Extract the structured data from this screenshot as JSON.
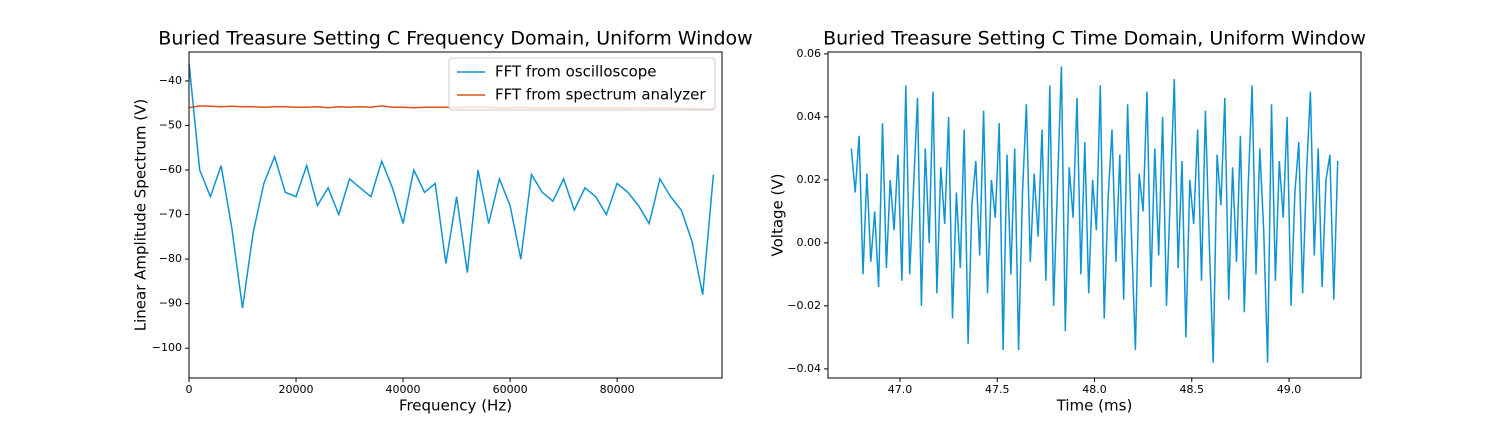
{
  "chart_data": [
    {
      "type": "line",
      "title": "Buried Treasure Setting C Frequency Domain, Uniform Window",
      "xlabel": "Frequency (Hz)",
      "ylabel": "Linear Amplitude Spectrum (V)",
      "x": [
        0,
        2000,
        4000,
        6000,
        8000,
        10000,
        12000,
        14000,
        16000,
        18000,
        20000,
        22000,
        24000,
        26000,
        28000,
        30000,
        32000,
        34000,
        36000,
        38000,
        40000,
        42000,
        44000,
        46000,
        48000,
        50000,
        52000,
        54000,
        56000,
        58000,
        60000,
        62000,
        64000,
        66000,
        68000,
        70000,
        72000,
        74000,
        76000,
        78000,
        80000,
        82000,
        84000,
        86000,
        88000,
        90000,
        92000,
        94000,
        96000,
        98000
      ],
      "series": [
        {
          "name": "FFT from oscilloscope",
          "color": "#0f94d2",
          "values": [
            -36,
            -60,
            -66,
            -59,
            -73,
            -91,
            -74,
            -63,
            -57,
            -65,
            -66,
            -59,
            -68,
            -64,
            -70,
            -62,
            -64,
            -66,
            -58,
            -64,
            -72,
            -60,
            -65,
            -63,
            -81,
            -66,
            -83,
            -60,
            -72,
            -62,
            -68,
            -80,
            -61,
            -65,
            -67,
            -62,
            -69,
            -64,
            -66,
            -70,
            -63,
            -65,
            -68,
            -72,
            -62,
            -66,
            -69,
            -76,
            -88,
            -61
          ]
        },
        {
          "name": "FFT from spectrum analyzer",
          "color": "#d95319",
          "values": [
            -46,
            -45.6,
            -45.7,
            -45.8,
            -45.7,
            -45.8,
            -45.8,
            -45.9,
            -45.8,
            -45.8,
            -45.9,
            -45.9,
            -45.8,
            -46,
            -45.8,
            -45.9,
            -45.8,
            -45.9,
            -45.6,
            -45.9,
            -45.9,
            -46,
            -45.9,
            -45.9,
            -45.9,
            -46,
            -45.9,
            -45.9,
            -45.9,
            -46,
            -46,
            -45.9,
            -46,
            -46,
            -46,
            -46,
            -46,
            -46.1,
            -46,
            -46,
            -46,
            -46.1,
            -46,
            -46.1,
            -46.1,
            -46.1,
            -46.2,
            -46.2,
            -46.3,
            -46.2
          ]
        }
      ],
      "xlim": [
        0,
        99600
      ],
      "ylim": [
        -106.7,
        -33.5
      ],
      "xticks": [
        0,
        20000,
        40000,
        60000,
        80000
      ],
      "yticks": [
        {
          "value": -100,
          "label": "−100"
        },
        {
          "value": -90,
          "label": "−90"
        },
        {
          "value": -80,
          "label": "−80"
        },
        {
          "value": -70,
          "label": "−70"
        },
        {
          "value": -60,
          "label": "−60"
        },
        {
          "value": -50,
          "label": "−50"
        },
        {
          "value": -40,
          "label": "−40"
        }
      ],
      "legend": "upper right",
      "grid": false
    },
    {
      "type": "line",
      "title": "Buried Treasure Setting C Time Domain, Uniform Window",
      "xlabel": "Time (ms)",
      "ylabel": "Voltage (V)",
      "x": [
        46.75,
        46.77,
        46.79,
        46.81,
        46.83,
        46.85,
        46.87,
        46.89,
        46.91,
        46.93,
        46.95,
        46.97,
        46.99,
        47.01,
        47.03,
        47.05,
        47.07,
        47.09,
        47.11,
        47.13,
        47.15,
        47.17,
        47.19,
        47.21,
        47.23,
        47.25,
        47.27,
        47.29,
        47.31,
        47.33,
        47.35,
        47.37,
        47.39,
        47.41,
        47.43,
        47.45,
        47.47,
        47.49,
        47.51,
        47.53,
        47.55,
        47.57,
        47.59,
        47.61,
        47.63,
        47.65,
        47.67,
        47.69,
        47.71,
        47.73,
        47.75,
        47.77,
        47.79,
        47.81,
        47.83,
        47.85,
        47.87,
        47.89,
        47.91,
        47.93,
        47.95,
        47.97,
        47.99,
        48.01,
        48.03,
        48.05,
        48.07,
        48.09,
        48.11,
        48.13,
        48.15,
        48.17,
        48.19,
        48.21,
        48.23,
        48.25,
        48.27,
        48.29,
        48.31,
        48.33,
        48.35,
        48.37,
        48.39,
        48.41,
        48.43,
        48.45,
        48.47,
        48.49,
        48.51,
        48.53,
        48.55,
        48.57,
        48.59,
        48.61,
        48.63,
        48.65,
        48.67,
        48.69,
        48.71,
        48.73,
        48.75,
        48.77,
        48.79,
        48.81,
        48.83,
        48.85,
        48.87,
        48.89,
        48.91,
        48.93,
        48.95,
        48.97,
        48.99,
        49.01,
        49.03,
        49.05,
        49.07,
        49.09,
        49.11,
        49.13,
        49.15,
        49.17,
        49.19,
        49.21,
        49.23,
        49.25
      ],
      "values": [
        0.03,
        0.016,
        0.034,
        -0.01,
        0.022,
        -0.006,
        0.01,
        -0.014,
        0.038,
        -0.008,
        0.02,
        0.004,
        0.028,
        -0.012,
        0.05,
        -0.01,
        0.018,
        0.046,
        -0.02,
        0.03,
        0.0,
        0.048,
        -0.016,
        0.024,
        0.006,
        0.04,
        -0.024,
        0.016,
        -0.008,
        0.036,
        -0.032,
        0.012,
        0.026,
        -0.004,
        0.042,
        -0.016,
        0.02,
        0.008,
        0.038,
        -0.034,
        0.028,
        -0.01,
        0.03,
        -0.034,
        0.016,
        0.044,
        -0.006,
        0.022,
        0.002,
        0.036,
        -0.012,
        0.05,
        -0.02,
        0.018,
        0.056,
        -0.028,
        0.024,
        0.008,
        0.046,
        -0.01,
        0.032,
        -0.016,
        0.02,
        0.004,
        0.05,
        -0.024,
        0.014,
        0.036,
        -0.006,
        0.028,
        -0.018,
        0.044,
        0.002,
        -0.034,
        0.022,
        0.01,
        0.048,
        -0.014,
        0.03,
        -0.004,
        0.04,
        -0.02,
        0.016,
        0.052,
        -0.008,
        0.026,
        -0.03,
        0.02,
        0.006,
        0.036,
        -0.012,
        0.042,
        0.0,
        -0.038,
        0.028,
        0.012,
        0.046,
        -0.018,
        0.024,
        -0.006,
        0.034,
        -0.022,
        0.018,
        0.05,
        -0.01,
        0.03,
        0.004,
        -0.038,
        0.044,
        -0.012,
        0.026,
        0.008,
        0.04,
        -0.02,
        0.016,
        0.032,
        -0.016,
        0.022,
        0.048,
        -0.004,
        0.03,
        -0.014,
        0.02,
        0.028,
        -0.018,
        0.026
      ],
      "color": "#0f94d2",
      "xlim": [
        46.63,
        49.37
      ],
      "ylim": [
        -0.0429,
        0.0606
      ],
      "xticks": [
        {
          "value": 47,
          "label": "47.0"
        },
        {
          "value": 47.5,
          "label": "47.5"
        },
        {
          "value": 48,
          "label": "48.0"
        },
        {
          "value": 48.5,
          "label": "48.5"
        },
        {
          "value": 49,
          "label": "49.0"
        }
      ],
      "yticks": [
        {
          "value": -0.04,
          "label": "−0.04"
        },
        {
          "value": -0.02,
          "label": "−0.02"
        },
        {
          "value": 0,
          "label": "0.00"
        },
        0.02,
        0.04,
        0.06
      ],
      "grid": false
    }
  ]
}
